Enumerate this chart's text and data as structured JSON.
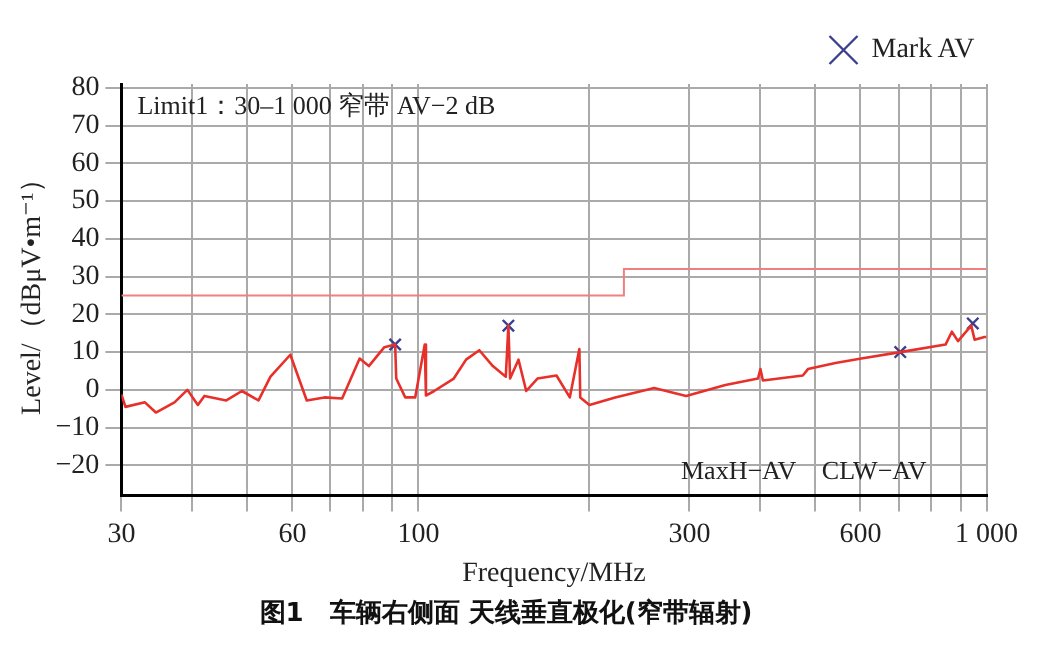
{
  "chart_data": {
    "type": "line",
    "title": "图1　车辆右侧面 天线垂直极化(窄带辐射)",
    "xlabel": "Frequency/MHz",
    "ylabel": "Level/（dBμV•m⁻¹）",
    "annotations": [
      "Limit1：30–1 000 窄带 AV−2 dB",
      "MaxH−AV　CLW−AV"
    ],
    "log": "x",
    "xlim": [
      30,
      1000
    ],
    "ylim": [
      -28,
      81
    ],
    "xticks": [
      30,
      {
        "value": 40,
        "label": null
      },
      {
        "value": 50,
        "label": null
      },
      60,
      {
        "value": 70,
        "label": null
      },
      {
        "value": 80,
        "label": null
      },
      {
        "value": 90,
        "label": null
      },
      100,
      {
        "value": 200,
        "label": null
      },
      300,
      {
        "value": 400,
        "label": null
      },
      {
        "value": 500,
        "label": null
      },
      600,
      {
        "value": 700,
        "label": null
      },
      {
        "value": 800,
        "label": null
      },
      {
        "value": 900,
        "label": null
      },
      {
        "value": 1000,
        "label": "1 000"
      }
    ],
    "yticks": [
      -20,
      -10,
      0,
      10,
      20,
      30,
      40,
      50,
      60,
      70,
      80
    ],
    "grid": true,
    "legend": "top right",
    "series": [
      {
        "type": "step",
        "color": "#f08080",
        "x": [
          30,
          230,
          1000
        ],
        "values": [
          25,
          32,
          32
        ],
        "marker": "none"
      },
      {
        "color": "#e8302a",
        "marker": "none",
        "x": [
          30,
          30.5,
          33,
          34.5,
          37.2,
          39.2,
          40.9,
          42,
          45.9,
          48.9,
          52.3,
          54.9,
          59.5,
          63.6,
          68.3,
          73.4,
          78.8,
          81.8,
          87.1,
          91,
          91.4,
          94.8,
          98.7,
          102.6,
          103.1,
          106.6,
          115.4,
          121.3,
          128,
          135.2,
          142.5,
          144,
          145,
          150,
          154.8,
          162,
          175,
          184.7,
          192,
          192.7,
          200,
          222,
          260,
          296,
          347,
          396,
          400,
          404,
          475,
          485,
          542,
          602,
          705,
          847,
          869,
          891,
          940,
          953,
          992,
          1000
        ],
        "values": [
          -1.2,
          -4.5,
          -3.3,
          -6,
          -3.3,
          0,
          -4,
          -1.6,
          -2.8,
          -0.3,
          -2.8,
          3.5,
          9.3,
          -2.8,
          -2,
          -2.3,
          8.3,
          6.3,
          11.3,
          12,
          3,
          -2,
          -2,
          12,
          -1.5,
          -0.3,
          3,
          8,
          10.5,
          6.3,
          3.5,
          17,
          3,
          8,
          -0.3,
          3,
          3.8,
          -2,
          10.8,
          -2,
          -4,
          -2,
          0.5,
          -1.6,
          1.3,
          3,
          5.5,
          2.5,
          3.8,
          5.5,
          7.1,
          8.3,
          10,
          12,
          15.4,
          12.9,
          17,
          13.3,
          14,
          14
        ]
      },
      {
        "type": "scatter",
        "name": "Mark AV",
        "color": "#3a3f8f",
        "marker": "cross",
        "x": [
          91,
          144,
          705,
          946
        ],
        "values": [
          12,
          17,
          10,
          17.6
        ]
      }
    ]
  }
}
